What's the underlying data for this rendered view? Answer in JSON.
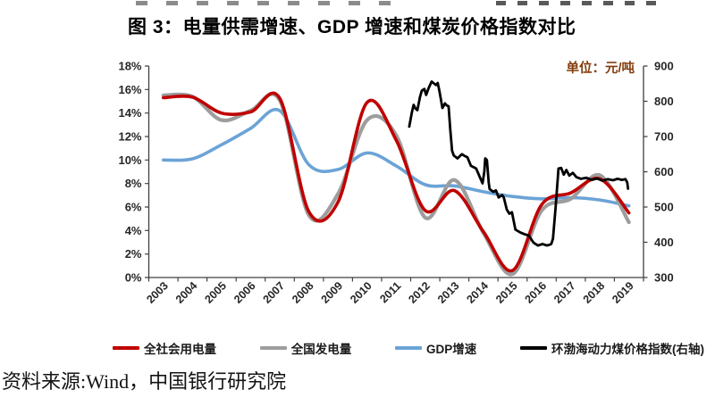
{
  "title": "图 3：电量供需增速、GDP 增速和煤炭价格指数对比",
  "unit_label": "单位：元/吨",
  "source_note": "资料来源:Wind，中国银行研究院",
  "colors": {
    "electricity_consumption": "#c00000",
    "power_generation": "#9d9d9d",
    "gdp_growth": "#6ba3d6",
    "coal_price_index": "#000000",
    "axis": "#404040",
    "tick_label": "#262626",
    "unit_label": "#843c0c"
  },
  "chart_data": {
    "type": "line",
    "title": "图 3：电量供需增速、GDP 增速和煤炭价格指数对比",
    "grid": false,
    "legend_position": "bottom",
    "categories": [
      2003,
      2004,
      2005,
      2006,
      2007,
      2008,
      2009,
      2010,
      2011,
      2012,
      2013,
      2014,
      2015,
      2016,
      2017,
      2018,
      2019
    ],
    "left_axis": {
      "min": 0,
      "max": 18,
      "step": 2,
      "suffix": "%"
    },
    "right_axis": {
      "min": 300,
      "max": 900,
      "step": 100,
      "unit": "元/吨"
    },
    "series": [
      {
        "name": "全社会用电量",
        "axis": "left",
        "color": "#c00000",
        "width": 3.6,
        "z": 3,
        "smooth": true,
        "values": [
          15.3,
          15.35,
          14.0,
          14.1,
          15.25,
          5.6,
          6.4,
          14.9,
          11.7,
          5.7,
          7.4,
          3.9,
          0.6,
          6.2,
          7.2,
          8.4,
          5.5
        ]
      },
      {
        "name": "全国发电量",
        "axis": "left",
        "color": "#9d9d9d",
        "width": 4.2,
        "z": 2,
        "smooth": true,
        "values": [
          15.5,
          15.4,
          13.4,
          14.2,
          15.1,
          5.3,
          7.1,
          13.4,
          12.1,
          5.1,
          8.3,
          3.8,
          0.3,
          5.7,
          6.7,
          8.7,
          4.7
        ]
      },
      {
        "name": "GDP增速",
        "axis": "left",
        "color": "#6ba3d6",
        "width": 3.6,
        "z": 1,
        "smooth": true,
        "values": [
          10.0,
          10.1,
          11.3,
          12.7,
          14.2,
          9.6,
          9.2,
          10.6,
          9.5,
          7.9,
          7.8,
          7.3,
          6.9,
          6.7,
          6.8,
          6.6,
          6.1
        ]
      },
      {
        "name": "环渤海动力煤价格指数(右轴)",
        "axis": "right",
        "color": "#000000",
        "width": 2.8,
        "z": 4,
        "smooth": false,
        "points": [
          [
            2011.45,
            728
          ],
          [
            2011.54,
            768
          ],
          [
            2011.6,
            790
          ],
          [
            2011.66,
            780
          ],
          [
            2011.73,
            775
          ],
          [
            2011.82,
            812
          ],
          [
            2011.88,
            830
          ],
          [
            2011.97,
            835
          ],
          [
            2012.03,
            818
          ],
          [
            2012.12,
            838
          ],
          [
            2012.22,
            856
          ],
          [
            2012.31,
            850
          ],
          [
            2012.37,
            846
          ],
          [
            2012.43,
            852
          ],
          [
            2012.49,
            827
          ],
          [
            2012.59,
            781
          ],
          [
            2012.68,
            794
          ],
          [
            2012.74,
            788
          ],
          [
            2012.8,
            786
          ],
          [
            2012.86,
            720
          ],
          [
            2012.92,
            660
          ],
          [
            2012.98,
            646
          ],
          [
            2013.11,
            638
          ],
          [
            2013.26,
            650
          ],
          [
            2013.35,
            645
          ],
          [
            2013.45,
            641
          ],
          [
            2013.57,
            617
          ],
          [
            2013.66,
            613
          ],
          [
            2013.75,
            609
          ],
          [
            2013.88,
            584
          ],
          [
            2013.97,
            567
          ],
          [
            2014.03,
            600
          ],
          [
            2014.06,
            638
          ],
          [
            2014.12,
            633
          ],
          [
            2014.18,
            570
          ],
          [
            2014.21,
            551
          ],
          [
            2014.34,
            543
          ],
          [
            2014.43,
            547
          ],
          [
            2014.52,
            527
          ],
          [
            2014.64,
            534
          ],
          [
            2014.7,
            527
          ],
          [
            2014.8,
            493
          ],
          [
            2014.89,
            481
          ],
          [
            2014.98,
            485
          ],
          [
            2015.1,
            436
          ],
          [
            2015.26,
            428
          ],
          [
            2015.41,
            423
          ],
          [
            2015.56,
            419
          ],
          [
            2015.72,
            399
          ],
          [
            2015.87,
            391
          ],
          [
            2016.03,
            395
          ],
          [
            2016.18,
            391
          ],
          [
            2016.27,
            393
          ],
          [
            2016.33,
            395
          ],
          [
            2016.39,
            410
          ],
          [
            2016.48,
            500
          ],
          [
            2016.58,
            609
          ],
          [
            2016.67,
            611
          ],
          [
            2016.76,
            592
          ],
          [
            2016.85,
            605
          ],
          [
            2016.95,
            589
          ],
          [
            2017.07,
            597
          ],
          [
            2017.19,
            585
          ],
          [
            2017.35,
            580
          ],
          [
            2017.53,
            583
          ],
          [
            2017.72,
            577
          ],
          [
            2017.9,
            581
          ],
          [
            2018.08,
            575
          ],
          [
            2018.27,
            579
          ],
          [
            2018.45,
            576
          ],
          [
            2018.61,
            580
          ],
          [
            2018.76,
            577
          ],
          [
            2018.88,
            579
          ],
          [
            2018.94,
            570
          ],
          [
            2018.97,
            552
          ]
        ]
      }
    ]
  }
}
